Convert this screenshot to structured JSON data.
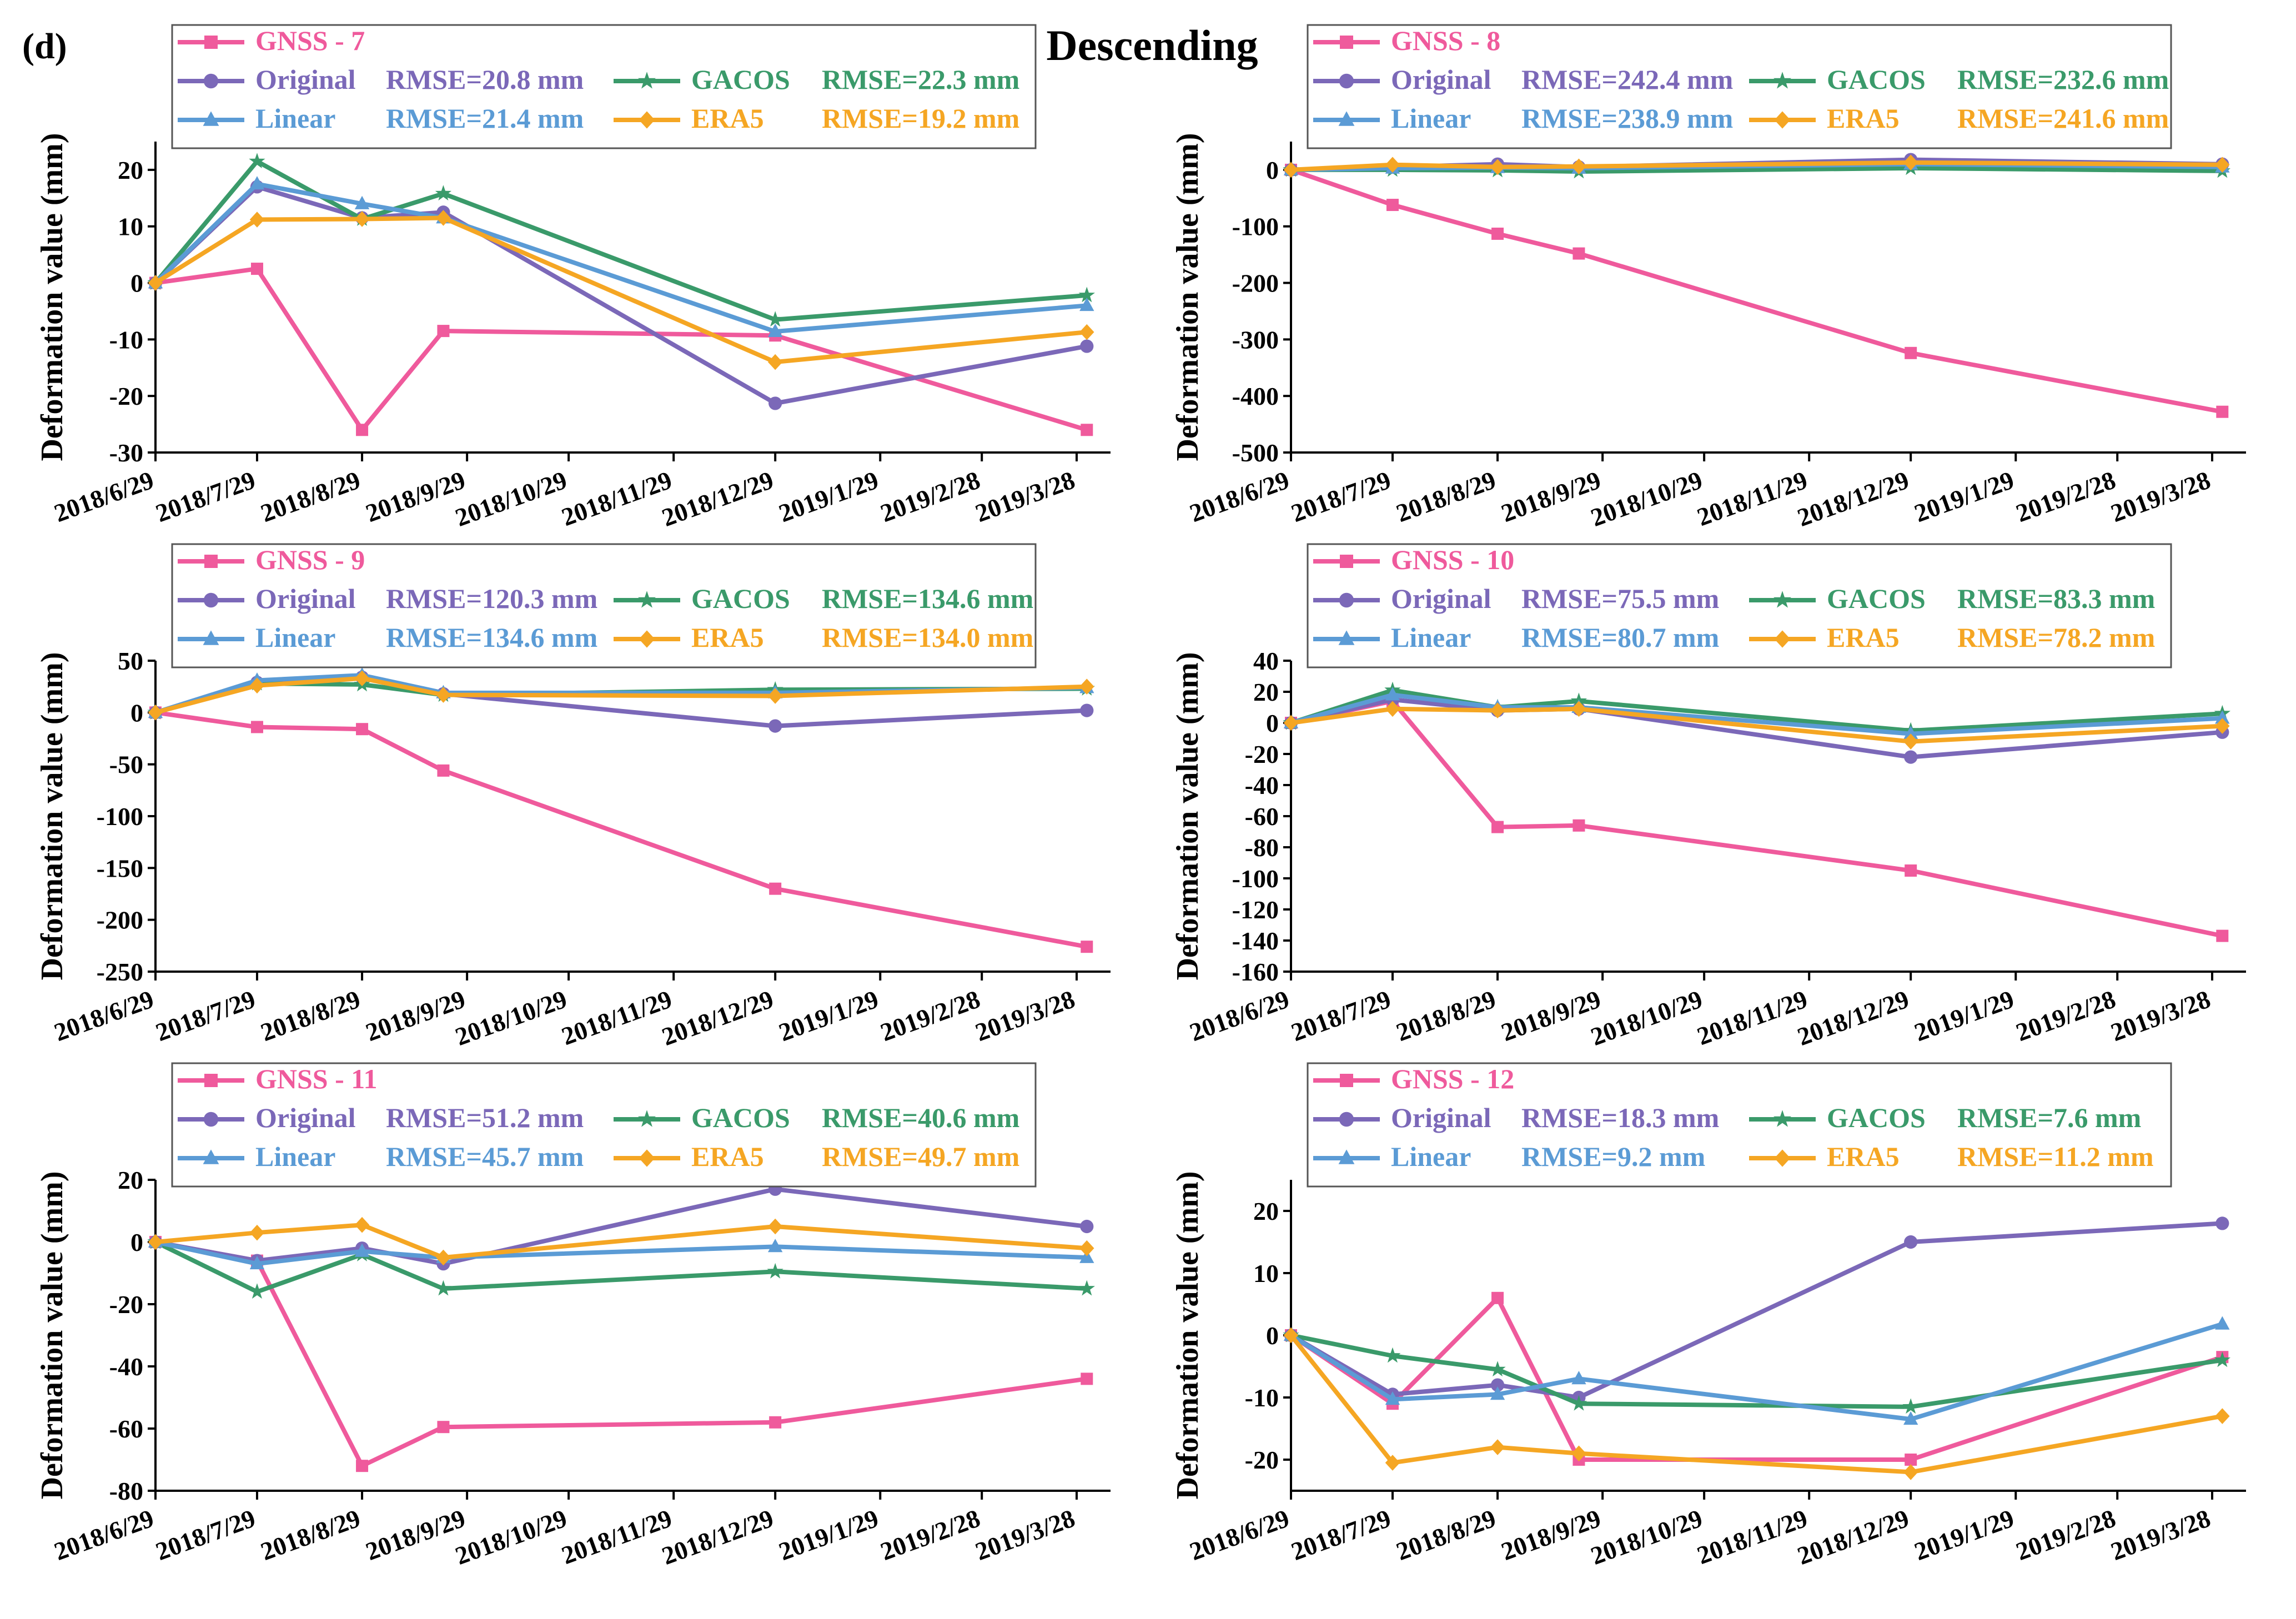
{
  "figure": {
    "panel_label": "(d)",
    "title": "Descending",
    "colors": {
      "gnss": "#ef5a9c",
      "original": "#7b68b8",
      "gacos": "#3a9a6a",
      "linear": "#5b9bd5",
      "era5": "#f5a623"
    }
  },
  "chart_data": [
    {
      "type": "line",
      "title": "GNSS - 7",
      "xlabel": "",
      "ylabel": "Deformation value (mm)",
      "ylim": [
        -30,
        25
      ],
      "yticks": [
        -30,
        -20,
        -10,
        0,
        10,
        20
      ],
      "xlim": [
        0,
        282
      ],
      "xticks": [
        0,
        30,
        61,
        92,
        122,
        153,
        183,
        214,
        244,
        272
      ],
      "xtick_labels": [
        "2018/6/29",
        "2018/7/29",
        "2018/8/29",
        "2018/9/29",
        "2018/10/29",
        "2018/11/29",
        "2018/12/29",
        "2019/1/29",
        "2019/2/28",
        "2019/3/28"
      ],
      "x": [
        0,
        30,
        61,
        85,
        183,
        275
      ],
      "series": [
        {
          "name": "GNSS - 7",
          "key": "gnss",
          "marker": "square",
          "rmse": "",
          "values": [
            0,
            2.5,
            -26,
            -8.5,
            -9.3,
            -26
          ]
        },
        {
          "name": "Original",
          "key": "original",
          "marker": "circle",
          "rmse": "RMSE=20.8 mm",
          "values": [
            0,
            17,
            11.5,
            12.5,
            -21.3,
            -11.2
          ]
        },
        {
          "name": "GACOS",
          "key": "gacos",
          "marker": "star",
          "rmse": "RMSE=22.3 mm",
          "values": [
            0,
            21.5,
            11.3,
            15.8,
            -6.5,
            -2.2
          ]
        },
        {
          "name": "Linear",
          "key": "linear",
          "marker": "triangle",
          "rmse": "RMSE=21.4 mm",
          "values": [
            0,
            17.5,
            14,
            11.5,
            -8.6,
            -4
          ]
        },
        {
          "name": "ERA5",
          "key": "era5",
          "marker": "diamond",
          "rmse": "RMSE=19.2 mm",
          "values": [
            0,
            11.2,
            11.3,
            11.5,
            -14,
            -8.7
          ]
        }
      ]
    },
    {
      "type": "line",
      "title": "GNSS - 8",
      "xlabel": "",
      "ylabel": "Deformation value (mm)",
      "ylim": [
        -500,
        50
      ],
      "yticks": [
        -500,
        -400,
        -300,
        -200,
        -100,
        0
      ],
      "xlim": [
        0,
        282
      ],
      "xticks": [
        0,
        30,
        61,
        92,
        122,
        153,
        183,
        214,
        244,
        272
      ],
      "xtick_labels": [
        "2018/6/29",
        "2018/7/29",
        "2018/8/29",
        "2018/9/29",
        "2018/10/29",
        "2018/11/29",
        "2018/12/29",
        "2019/1/29",
        "2019/2/28",
        "2019/3/28"
      ],
      "x": [
        0,
        30,
        61,
        85,
        183,
        275
      ],
      "series": [
        {
          "name": "GNSS - 8",
          "key": "gnss",
          "marker": "square",
          "rmse": "",
          "values": [
            0,
            -62,
            -113,
            -148,
            -324,
            -428
          ]
        },
        {
          "name": "Original",
          "key": "original",
          "marker": "circle",
          "rmse": "RMSE=242.4 mm",
          "values": [
            0,
            5,
            10,
            5,
            18,
            10
          ]
        },
        {
          "name": "GACOS",
          "key": "gacos",
          "marker": "star",
          "rmse": "RMSE=232.6 mm",
          "values": [
            0,
            0,
            -1,
            -3,
            3,
            -2
          ]
        },
        {
          "name": "Linear",
          "key": "linear",
          "marker": "triangle",
          "rmse": "RMSE=238.9 mm",
          "values": [
            0,
            3,
            4,
            3,
            10,
            5
          ]
        },
        {
          "name": "ERA5",
          "key": "era5",
          "marker": "diamond",
          "rmse": "RMSE=241.6 mm",
          "values": [
            0,
            9,
            5,
            6,
            13,
            9
          ]
        }
      ]
    },
    {
      "type": "line",
      "title": "GNSS - 9",
      "xlabel": "",
      "ylabel": "Deformation value (mm)",
      "ylim": [
        -250,
        50
      ],
      "yticks": [
        -250,
        -200,
        -150,
        -100,
        -50,
        0,
        50
      ],
      "xlim": [
        0,
        282
      ],
      "xticks": [
        0,
        30,
        61,
        92,
        122,
        153,
        183,
        214,
        244,
        272
      ],
      "xtick_labels": [
        "2018/6/29",
        "2018/7/29",
        "2018/8/29",
        "2018/9/29",
        "2018/10/29",
        "2018/11/29",
        "2018/12/29",
        "2019/1/29",
        "2019/2/28",
        "2019/3/28"
      ],
      "x": [
        0,
        30,
        61,
        85,
        183,
        275
      ],
      "series": [
        {
          "name": "GNSS - 9",
          "key": "gnss",
          "marker": "square",
          "rmse": "",
          "values": [
            0,
            -14,
            -16,
            -56,
            -170,
            -226
          ]
        },
        {
          "name": "Original",
          "key": "original",
          "marker": "circle",
          "rmse": "RMSE=120.3 mm",
          "values": [
            0,
            29,
            34,
            18,
            -13,
            2
          ]
        },
        {
          "name": "GACOS",
          "key": "gacos",
          "marker": "star",
          "rmse": "RMSE=134.6 mm",
          "values": [
            0,
            28,
            27,
            17,
            22,
            23
          ]
        },
        {
          "name": "Linear",
          "key": "linear",
          "marker": "triangle",
          "rmse": "RMSE=134.6 mm",
          "values": [
            0,
            31,
            36,
            19,
            19,
            24
          ]
        },
        {
          "name": "ERA5",
          "key": "era5",
          "marker": "diamond",
          "rmse": "RMSE=134.0 mm",
          "values": [
            0,
            26,
            33,
            17,
            16,
            25
          ]
        }
      ]
    },
    {
      "type": "line",
      "title": "GNSS - 10",
      "xlabel": "",
      "ylabel": "Deformation value (mm)",
      "ylim": [
        -160,
        40
      ],
      "yticks": [
        -160,
        -140,
        -120,
        -100,
        -80,
        -60,
        -40,
        -20,
        0,
        20,
        40
      ],
      "xlim": [
        0,
        282
      ],
      "xticks": [
        0,
        30,
        61,
        92,
        122,
        153,
        183,
        214,
        244,
        272
      ],
      "xtick_labels": [
        "2018/6/29",
        "2018/7/29",
        "2018/8/29",
        "2018/9/29",
        "2018/10/29",
        "2018/11/29",
        "2018/12/29",
        "2019/1/29",
        "2019/2/28",
        "2019/3/28"
      ],
      "x": [
        0,
        30,
        61,
        85,
        183,
        275
      ],
      "series": [
        {
          "name": "GNSS - 10",
          "key": "gnss",
          "marker": "square",
          "rmse": "",
          "values": [
            0,
            14,
            -67,
            -66,
            -95,
            -137
          ]
        },
        {
          "name": "Original",
          "key": "original",
          "marker": "circle",
          "rmse": "RMSE=75.5 mm",
          "values": [
            0,
            15,
            8,
            9,
            -22,
            -6
          ]
        },
        {
          "name": "GACOS",
          "key": "gacos",
          "marker": "star",
          "rmse": "RMSE=83.3 mm",
          "values": [
            0,
            21,
            10,
            14,
            -5,
            6
          ]
        },
        {
          "name": "Linear",
          "key": "linear",
          "marker": "triangle",
          "rmse": "RMSE=80.7 mm",
          "values": [
            0,
            18,
            10,
            10,
            -7,
            3
          ]
        },
        {
          "name": "ERA5",
          "key": "era5",
          "marker": "diamond",
          "rmse": "RMSE=78.2 mm",
          "values": [
            0,
            9,
            8,
            9,
            -12,
            -2
          ]
        }
      ]
    },
    {
      "type": "line",
      "title": "GNSS - 11",
      "xlabel": "",
      "ylabel": "Deformation value (mm)",
      "ylim": [
        -80,
        20
      ],
      "yticks": [
        -80,
        -60,
        -40,
        -20,
        0,
        20
      ],
      "xlim": [
        0,
        282
      ],
      "xticks": [
        0,
        30,
        61,
        92,
        122,
        153,
        183,
        214,
        244,
        272
      ],
      "xtick_labels": [
        "2018/6/29",
        "2018/7/29",
        "2018/8/29",
        "2018/9/29",
        "2018/10/29",
        "2018/11/29",
        "2018/12/29",
        "2019/1/29",
        "2019/2/28",
        "2019/3/28"
      ],
      "x": [
        0,
        30,
        61,
        85,
        183,
        275
      ],
      "series": [
        {
          "name": "GNSS - 11",
          "key": "gnss",
          "marker": "square",
          "rmse": "",
          "values": [
            0,
            -6,
            -72,
            -59.5,
            -58,
            -44
          ]
        },
        {
          "name": "Original",
          "key": "original",
          "marker": "circle",
          "rmse": "RMSE=51.2 mm",
          "values": [
            0,
            -6,
            -2,
            -7,
            17,
            5
          ]
        },
        {
          "name": "GACOS",
          "key": "gacos",
          "marker": "star",
          "rmse": "RMSE=40.6 mm",
          "values": [
            0,
            -16,
            -4,
            -15,
            -9.5,
            -15
          ]
        },
        {
          "name": "Linear",
          "key": "linear",
          "marker": "triangle",
          "rmse": "RMSE=45.7 mm",
          "values": [
            0,
            -7,
            -3,
            -5,
            -1.5,
            -5
          ]
        },
        {
          "name": "ERA5",
          "key": "era5",
          "marker": "diamond",
          "rmse": "RMSE=49.7 mm",
          "values": [
            0,
            3,
            5.5,
            -5,
            5,
            -2
          ]
        }
      ]
    },
    {
      "type": "line",
      "title": "GNSS - 12",
      "xlabel": "",
      "ylabel": "Deformation value (mm)",
      "ylim": [
        -25,
        25
      ],
      "yticks": [
        -20,
        -10,
        0,
        10,
        20
      ],
      "xlim": [
        0,
        282
      ],
      "xticks": [
        0,
        30,
        61,
        92,
        122,
        153,
        183,
        214,
        244,
        272
      ],
      "xtick_labels": [
        "2018/6/29",
        "2018/7/29",
        "2018/8/29",
        "2018/9/29",
        "2018/10/29",
        "2018/11/29",
        "2018/12/29",
        "2019/1/29",
        "2019/2/28",
        "2019/3/28"
      ],
      "x": [
        0,
        30,
        61,
        85,
        183,
        275
      ],
      "series": [
        {
          "name": "GNSS - 12",
          "key": "gnss",
          "marker": "square",
          "rmse": "",
          "values": [
            0,
            -11,
            6,
            -20,
            -20,
            -3.5
          ]
        },
        {
          "name": "Original",
          "key": "original",
          "marker": "circle",
          "rmse": "RMSE=18.3 mm",
          "values": [
            0,
            -9.5,
            -8,
            -10,
            15,
            18
          ]
        },
        {
          "name": "GACOS",
          "key": "gacos",
          "marker": "star",
          "rmse": "RMSE=7.6 mm",
          "values": [
            0,
            -3.3,
            -5.5,
            -11,
            -11.5,
            -4
          ]
        },
        {
          "name": "Linear",
          "key": "linear",
          "marker": "triangle",
          "rmse": "RMSE=9.2 mm",
          "values": [
            0,
            -10.3,
            -9.5,
            -7,
            -13.5,
            1.8
          ]
        },
        {
          "name": "ERA5",
          "key": "era5",
          "marker": "diamond",
          "rmse": "RMSE=11.2 mm",
          "values": [
            0,
            -20.5,
            -18,
            -19,
            -22,
            -13
          ]
        }
      ]
    }
  ]
}
